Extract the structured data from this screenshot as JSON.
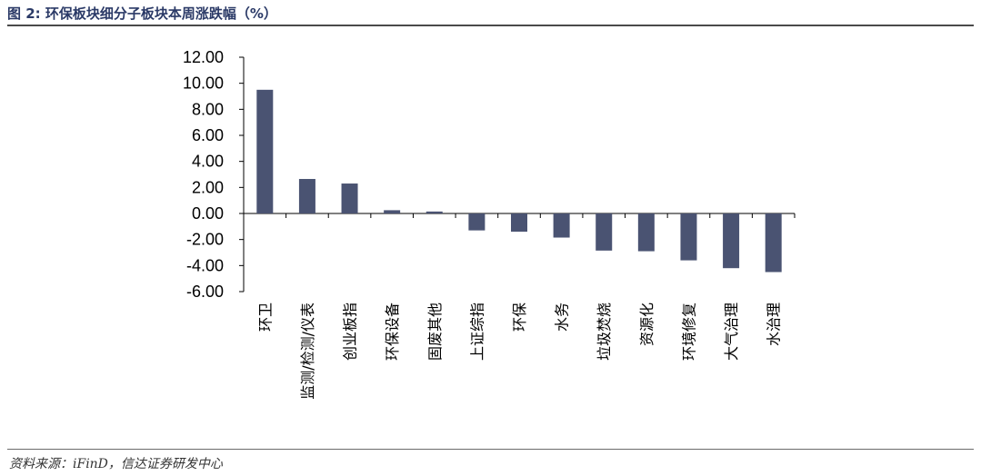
{
  "figure": {
    "title": "图 2:  环保板块细分子板块本周涨跌幅（%）",
    "source": "资料来源：iFinD，信达证券研发中心"
  },
  "colors": {
    "bar": "#4a5372",
    "title": "#2b3a67",
    "axis": "#000000"
  },
  "chart_data": {
    "type": "bar",
    "title": "",
    "xlabel": "",
    "ylabel": "",
    "ylim": [
      -6,
      12
    ],
    "y_ticks": [
      "12.00",
      "10.00",
      "8.00",
      "6.00",
      "4.00",
      "2.00",
      "0.00",
      "-2.00",
      "-4.00",
      "-6.00"
    ],
    "y_tick_values": [
      12,
      10,
      8,
      6,
      4,
      2,
      0,
      -2,
      -4,
      -6
    ],
    "grid": false,
    "categories": [
      "环卫",
      "监测/检测/仪表",
      "创业板指",
      "环保设备",
      "固废其他",
      "上证综指",
      "环保",
      "水务",
      "垃圾焚烧",
      "资源化",
      "环境修复",
      "大气治理",
      "水治理"
    ],
    "values": [
      9.5,
      2.65,
      2.3,
      0.25,
      0.15,
      -1.3,
      -1.4,
      -1.85,
      -2.85,
      -2.9,
      -3.6,
      -4.2,
      -4.5
    ]
  }
}
